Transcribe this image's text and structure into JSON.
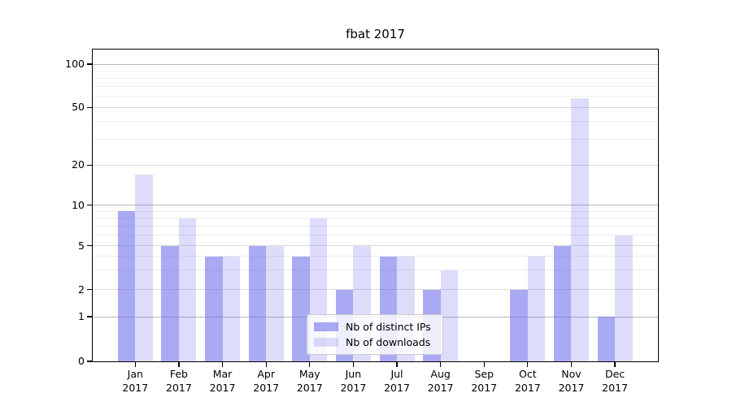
{
  "title": "fbat 2017",
  "legend": {
    "items": [
      {
        "label": "Nb of distinct IPs",
        "color": "rgba(100,100,235,0.55)"
      },
      {
        "label": "Nb of downloads",
        "color": "rgba(100,100,235,0.22)"
      }
    ]
  },
  "chart_data": {
    "type": "bar",
    "title": "fbat 2017",
    "categories": [
      "Jan",
      "Feb",
      "Mar",
      "Apr",
      "May",
      "Jun",
      "Jul",
      "Aug",
      "Sep",
      "Oct",
      "Nov",
      "Dec"
    ],
    "x_year_label": "2017",
    "series": [
      {
        "name": "Nb of distinct IPs",
        "color": "rgba(100,100,235,0.55)",
        "values": [
          9,
          5,
          4,
          5,
          4,
          2,
          4,
          2,
          0,
          2,
          5,
          1
        ]
      },
      {
        "name": "Nb of downloads",
        "color": "rgba(100,100,235,0.22)",
        "values": [
          17,
          8,
          4,
          5,
          8,
          5,
          4,
          3,
          0,
          4,
          58,
          6
        ]
      }
    ],
    "y_ticks": [
      0,
      1,
      2,
      5,
      10,
      20,
      50,
      100
    ],
    "y_scale": "log-like with 0 at baseline",
    "ylim": [
      0,
      130
    ],
    "grid": true,
    "legend_position": "bottom-center"
  }
}
